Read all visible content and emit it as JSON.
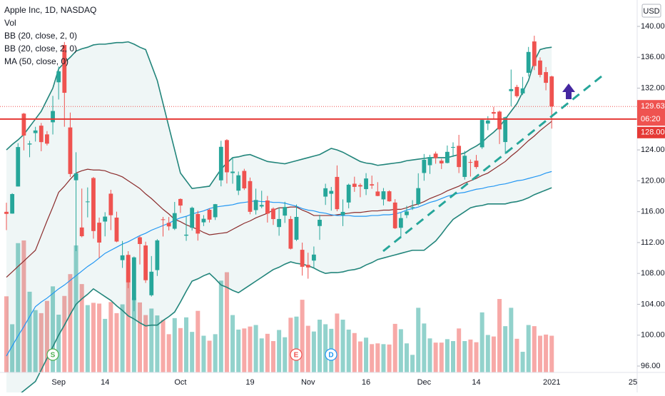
{
  "chart_data": {
    "type": "candlestick",
    "title": "Apple Inc, 1D, NASDAQ",
    "currency": "USD",
    "up_color": "#26a69a",
    "down_color": "#ef5350",
    "grid": false,
    "ylim": [
      95.17,
      143.42
    ],
    "yticks": [
      {
        "value": 96,
        "label": "96.00"
      },
      {
        "value": 100,
        "label": "100.00"
      },
      {
        "value": 104,
        "label": "104.00"
      },
      {
        "value": 108,
        "label": "108.00"
      },
      {
        "value": 112,
        "label": "112.00"
      },
      {
        "value": 116,
        "label": "116.00"
      },
      {
        "value": 120,
        "label": "120.00"
      },
      {
        "value": 124,
        "label": "124.00"
      },
      {
        "value": 132,
        "label": "132.00"
      },
      {
        "value": 136,
        "label": "136.00"
      },
      {
        "value": 140,
        "label": "140.00"
      }
    ],
    "categories": [
      null,
      null,
      null,
      null,
      null,
      null,
      null,
      null,
      null,
      "Sep",
      null,
      null,
      null,
      null,
      null,
      null,
      null,
      "14",
      null,
      null,
      null,
      null,
      null,
      null,
      null,
      null,
      null,
      null,
      null,
      null,
      "Oct",
      null,
      null,
      null,
      null,
      null,
      null,
      null,
      null,
      null,
      null,
      null,
      "19",
      null,
      null,
      null,
      null,
      null,
      null,
      null,
      null,
      null,
      "Nov",
      null,
      null,
      null,
      null,
      null,
      null,
      null,
      null,
      null,
      "16",
      null,
      null,
      null,
      null,
      null,
      null,
      null,
      null,
      null,
      "Dec",
      null,
      null,
      null,
      null,
      null,
      null,
      null,
      null,
      "14",
      null,
      null,
      null,
      null,
      null,
      null,
      null,
      null,
      null,
      null,
      null,
      null,
      "2021",
      null,
      null,
      null,
      null,
      null,
      null,
      null,
      null,
      null,
      null,
      null,
      null,
      null,
      "25"
    ],
    "open": [
      115.98,
      115.75,
      119.26,
      128.7,
      124.7,
      126.18,
      127.14,
      126.01,
      127.58,
      132.76,
      137.59,
      126.91,
      120.07,
      113.95,
      117.26,
      120.36,
      114.57,
      114.72,
      118.33,
      115.23,
      109.72,
      110.4,
      104.54,
      112.68,
      111.62,
      105.17,
      108.43,
      115.01,
      114.55,
      113.79,
      117.64,
      112.89,
      113.91,
      115.7,
      114.62,
      116.25,
      115.28,
      120.06,
      125.27,
      121.0,
      118.72,
      121.28,
      119.96,
      116.2,
      116.67,
      117.45,
      116.39,
      114.01,
      115.49,
      115.05,
      112.37,
      111.06,
      109.11,
      109.66,
      114.14,
      117.95,
      118.32,
      120.5,
      115.55,
      117.19,
      119.62,
      119.44,
      118.92,
      119.55,
      118.61,
      117.59,
      118.64,
      117.18,
      113.91,
      115.55,
      116.57,
      116.97,
      121.01,
      122.02,
      123.52,
      122.6,
      122.31,
      124.37,
      124.53,
      120.5,
      122.43,
      122.6,
      124.34,
      127.41,
      128.9,
      128.96,
      125.02,
      131.61,
      132.16,
      131.32,
      133.99,
      138.05,
      135.58,
      134.08,
      133.52,
      null,
      null,
      null,
      null,
      null,
      null,
      null,
      null,
      null,
      null,
      null,
      null,
      null,
      null
    ],
    "high": [
      117.16,
      118.39,
      124.87,
      128.79,
      125.18,
      126.99,
      127.49,
      126.44,
      131.0,
      134.8,
      137.98,
      128.84,
      123.7,
      118.99,
      119.14,
      120.5,
      115.23,
      115.93,
      118.83,
      116.0,
      112.2,
      110.88,
      110.19,
      112.86,
      112.11,
      110.25,
      112.44,
      115.32,
      115.31,
      117.26,
      117.72,
      115.37,
      116.65,
      116.12,
      115.55,
      116.4,
      117.0,
      125.18,
      125.39,
      123.03,
      121.2,
      121.55,
      120.42,
      118.98,
      118.71,
      118.04,
      116.55,
      116.55,
      117.28,
      115.43,
      116.93,
      111.99,
      110.68,
      111.49,
      115.59,
      119.62,
      119.2,
      121.99,
      117.59,
      119.63,
      120.53,
      119.67,
      120.99,
      120.67,
      119.82,
      119.06,
      118.77,
      117.62,
      115.85,
      116.75,
      117.49,
      120.97,
      123.47,
      123.37,
      123.78,
      122.86,
      124.57,
      124.98,
      125.95,
      123.87,
      122.76,
      123.35,
      127.9,
      128.37,
      129.58,
      129.1,
      128.31,
      134.41,
      132.43,
      133.46,
      137.34,
      138.79,
      135.99,
      134.74,
      133.61,
      null,
      null,
      null,
      null,
      null,
      null,
      null,
      null,
      null,
      null,
      null,
      null,
      null,
      null
    ],
    "low": [
      113.61,
      115.73,
      119.25,
      123.94,
      123.05,
      125.08,
      123.83,
      124.58,
      126.0,
      130.53,
      127.0,
      120.5,
      110.89,
      112.68,
      115.26,
      112.5,
      110.0,
      112.8,
      113.61,
      112.04,
      108.71,
      106.09,
      103.1,
      109.16,
      106.77,
      105.0,
      107.67,
      112.78,
      113.57,
      113.62,
      115.83,
      112.22,
      113.55,
      112.25,
      114.13,
      114.59,
      114.92,
      119.28,
      119.65,
      119.62,
      118.15,
      118.81,
      115.66,
      115.63,
      116.45,
      114.59,
      114.28,
      112.88,
      114.54,
      111.1,
      112.2,
      107.72,
      107.32,
      108.73,
      112.35,
      116.87,
      116.13,
      116.05,
      114.13,
      116.44,
      118.57,
      117.87,
      118.15,
      118.96,
      118.0,
      116.81,
      117.29,
      113.75,
      112.59,
      115.17,
      116.22,
      116.81,
      120.01,
      120.89,
      122.21,
      121.52,
      122.25,
      123.09,
      121.0,
      120.15,
      120.55,
      121.54,
      124.13,
      126.56,
      128.04,
      124.76,
      123.45,
      129.65,
      130.78,
      131.1,
      133.51,
      134.34,
      133.4,
      131.72,
      126.76,
      null,
      null,
      null,
      null,
      null,
      null,
      null,
      null,
      null,
      null,
      null,
      null,
      null,
      null
    ],
    "close": [
      115.71,
      118.28,
      124.37,
      125.86,
      124.83,
      126.52,
      125.01,
      124.81,
      129.04,
      134.18,
      131.4,
      120.88,
      120.96,
      112.82,
      117.32,
      113.49,
      112.0,
      115.36,
      115.54,
      112.13,
      110.34,
      106.84,
      110.08,
      111.81,
      107.12,
      108.22,
      112.28,
      114.96,
      114.09,
      115.81,
      116.79,
      113.02,
      116.5,
      113.16,
      115.08,
      114.97,
      116.97,
      124.4,
      121.1,
      121.19,
      120.71,
      119.02,
      115.98,
      117.51,
      116.87,
      115.75,
      115.04,
      115.05,
      116.6,
      111.2,
      115.32,
      108.86,
      108.77,
      110.44,
      114.95,
      119.03,
      118.69,
      116.32,
      115.97,
      119.49,
      119.21,
      119.26,
      120.3,
      119.39,
      118.03,
      118.64,
      117.34,
      113.85,
      115.17,
      116.03,
      116.59,
      119.05,
      122.72,
      123.08,
      122.94,
      122.25,
      123.75,
      124.38,
      121.78,
      123.24,
      122.41,
      121.78,
      127.88,
      127.81,
      128.7,
      126.66,
      128.23,
      131.88,
      130.96,
      131.97,
      136.69,
      134.87,
      133.72,
      132.69,
      129.63,
      null,
      null,
      null,
      null,
      null,
      null,
      null,
      null,
      null,
      null,
      null,
      null,
      null,
      null
    ],
    "volume": {
      "name": "Vol",
      "values": [
        199,
        126,
        338,
        345,
        211,
        163,
        155,
        187,
        225,
        151,
        200,
        257,
        332,
        231,
        176,
        182,
        180,
        140,
        184,
        155,
        178,
        287,
        195,
        183,
        150,
        167,
        149,
        137,
        100,
        142,
        116,
        144,
        106,
        161,
        96,
        83,
        100,
        240,
        262,
        150,
        112,
        115,
        120,
        124,
        89,
        101,
        82,
        111,
        92,
        143,
        146,
        190,
        122,
        107,
        138,
        126,
        114,
        154,
        138,
        112,
        103,
        81,
        91,
        74,
        76,
        74,
        73,
        127,
        113,
        76,
        46,
        169,
        128,
        89,
        78,
        78,
        87,
        82,
        115,
        82,
        86,
        79,
        157,
        98,
        94,
        192,
        121,
        169,
        88,
        54,
        124,
        121,
        96,
        99,
        96,
        null,
        null,
        null,
        null,
        null,
        null,
        null,
        null,
        null,
        null,
        null,
        null,
        null,
        null
      ]
    },
    "series": [
      {
        "name": "BB (20, close, 2, 0)",
        "color": "#22857b",
        "upper": [
          124,
          124.7,
          125.3,
          126,
          127,
          128,
          129,
          130.5,
          132,
          134.5,
          135.3,
          136,
          136.8,
          137.1,
          137.3,
          137.6,
          137.7,
          137.7,
          137.8,
          137.9,
          137.9,
          138,
          137.7,
          137.3,
          137,
          135,
          133,
          130,
          127,
          124,
          121,
          120,
          119,
          119.1,
          119.2,
          119.3,
          120.4,
          121.5,
          122.3,
          123,
          123.1,
          123.3,
          123.4,
          123.1,
          122.8,
          122.5,
          122.4,
          122.3,
          122.2,
          122.4,
          122.6,
          122.8,
          123,
          123.2,
          123.4,
          123.8,
          124.2,
          124,
          123.7,
          123.3,
          122.9,
          122.5,
          122.3,
          122.2,
          122,
          122.1,
          122.2,
          122.3,
          122.4,
          122.6,
          122.7,
          122.8,
          122.9,
          123,
          123,
          123,
          123,
          123.2,
          123.4,
          123.6,
          124.1,
          124.5,
          125,
          125.7,
          126.3,
          127,
          128,
          129,
          130,
          131.5,
          133,
          135.5,
          137,
          137.2,
          137.3,
          null,
          null,
          null,
          null,
          null,
          null,
          null,
          null,
          null,
          null,
          null,
          null,
          null,
          null
        ],
        "lower": [
          91,
          91.6,
          92.2,
          92.8,
          93.4,
          94,
          95.5,
          97,
          98.5,
          100,
          101.3,
          102.7,
          104,
          104.7,
          105.3,
          106,
          105.5,
          105,
          104.5,
          103.8,
          103.2,
          102.5,
          102.1,
          101.6,
          101.2,
          101.3,
          101.3,
          101.9,
          102.4,
          103,
          104.3,
          105.7,
          107,
          107.3,
          107.7,
          108,
          107.3,
          106.5,
          106.2,
          105.8,
          105.5,
          106,
          106.5,
          107,
          107.5,
          108,
          108.5,
          108.8,
          109.2,
          109.5,
          109.3,
          109.2,
          109,
          108.7,
          108.3,
          108,
          108.1,
          108.1,
          108.2,
          108.4,
          108.5,
          108.7,
          109.1,
          109.4,
          109.8,
          110,
          110.2,
          110.4,
          110.6,
          110.8,
          111,
          111,
          111,
          111.6,
          112.2,
          113.1,
          114.1,
          115,
          115.5,
          116,
          116.5,
          116.7,
          116.8,
          117,
          117,
          117,
          117,
          117.2,
          117.3,
          117.5,
          117.8,
          118.2,
          118.5,
          118.8,
          119.1,
          null,
          null,
          null,
          null,
          null,
          null,
          null,
          null,
          null,
          null,
          null,
          null,
          null,
          null
        ]
      },
      {
        "name": "BB (20, close, 2, 0)",
        "color": "#8b2c2c",
        "values": [
          107.5,
          108.2,
          108.9,
          109.6,
          110.3,
          111,
          112.9,
          114.8,
          116.6,
          118.5,
          119.3,
          120.2,
          121,
          121.3,
          121.5,
          121.4,
          121.4,
          121.3,
          121,
          120.8,
          120.5,
          120,
          119.5,
          119,
          118.3,
          117.7,
          117,
          116.3,
          115.7,
          115,
          114.7,
          114.3,
          114,
          113.7,
          113.3,
          113,
          113.1,
          113.2,
          113.3,
          113.7,
          114.1,
          114.5,
          114.8,
          115.2,
          115.5,
          115.8,
          116.2,
          116.5,
          116.5,
          116.6,
          116.6,
          116.2,
          115.9,
          115.5,
          115.5,
          115.5,
          115.5,
          115.6,
          115.7,
          115.8,
          115.9,
          115.9,
          116,
          116.1,
          116.1,
          116.2,
          116.2,
          116.3,
          116.3,
          116.5,
          116.8,
          117,
          117.3,
          117.7,
          118,
          118.3,
          118.7,
          119,
          119.3,
          119.7,
          120,
          120.3,
          120.7,
          121,
          121.5,
          122,
          122.5,
          123.2,
          123.8,
          124.5,
          125.2,
          125.8,
          126.5,
          127.1,
          127.7,
          null,
          null,
          null,
          null,
          null,
          null,
          null,
          null,
          null,
          null,
          null,
          null,
          null,
          null
        ]
      },
      {
        "name": "MA (50, close, 0)",
        "color": "#2196f3",
        "values": [
          97.3,
          98.6,
          99.9,
          101.1,
          102.4,
          103.7,
          104.3,
          104.8,
          105.4,
          106,
          106.5,
          107.1,
          107.7,
          108.3,
          108.9,
          109.4,
          110,
          110.6,
          111,
          111.4,
          111.8,
          112.1,
          112.5,
          112.9,
          113.2,
          113.6,
          113.9,
          114.2,
          114.5,
          114.9,
          115.2,
          115.4,
          115.7,
          115.9,
          116.1,
          116.4,
          116.6,
          116.7,
          116.8,
          116.9,
          117.1,
          117.2,
          117.3,
          117.4,
          117.3,
          117.3,
          117.2,
          117.2,
          117.1,
          116.9,
          116.7,
          116.4,
          116.2,
          116.1,
          115.9,
          115.8,
          115.6,
          115.5,
          115.5,
          115.5,
          115.4,
          115.4,
          115.4,
          115.5,
          115.5,
          115.6,
          115.6,
          115.7,
          115.9,
          116.2,
          116.4,
          116.6,
          116.9,
          117.2,
          117.4,
          117.7,
          118,
          118.2,
          118.4,
          118.5,
          118.7,
          118.9,
          119,
          119.2,
          119.3,
          119.5,
          119.6,
          119.8,
          120,
          120.1,
          120.3,
          120.5,
          120.7,
          121,
          121.2,
          null,
          null,
          null,
          null,
          null,
          null,
          null,
          null,
          null,
          null,
          null,
          null,
          null,
          null
        ]
      }
    ],
    "hlines": [
      {
        "value": 128,
        "label": "128.00",
        "color": "#e53935"
      }
    ],
    "last_price": 129.63,
    "countdown": "06:20",
    "events": [
      {
        "label": "S"
      },
      {
        "label": "E"
      },
      {
        "label": "D"
      }
    ]
  }
}
